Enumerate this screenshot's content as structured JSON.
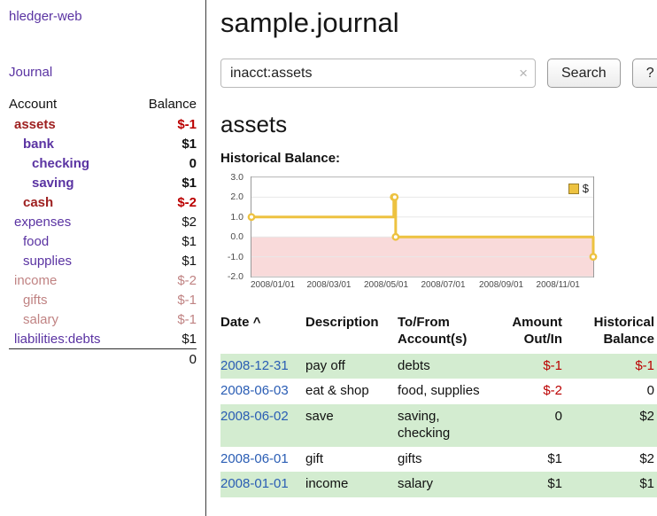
{
  "colors": {
    "purple": "#5a33a2",
    "red_name": "#9e2020",
    "neg": "#bb0000",
    "pink": "#c08383",
    "link_blue": "#2a5db4",
    "row_green": "#d3ecd0",
    "gold": "#edc240",
    "chart_neg_fill": "#f9dada"
  },
  "sidebar": {
    "app_title": "hledger-web",
    "journal_label": "Journal",
    "accounts_header": {
      "account": "Account",
      "balance": "Balance"
    },
    "accounts": [
      {
        "name": "assets",
        "indent": 0,
        "cls": "red bold",
        "balance": "$-1"
      },
      {
        "name": "bank",
        "indent": 1,
        "cls": "purple bold",
        "balance": "$1"
      },
      {
        "name": "checking",
        "indent": 2,
        "cls": "purple bold",
        "balance": "0"
      },
      {
        "name": "saving",
        "indent": 2,
        "cls": "purple bold",
        "balance": "$1"
      },
      {
        "name": "cash",
        "indent": 1,
        "cls": "red bold",
        "balance": "$-2"
      },
      {
        "name": "expenses",
        "indent": 0,
        "cls": "purple",
        "balance": "$2"
      },
      {
        "name": "food",
        "indent": 1,
        "cls": "purple",
        "balance": "$1"
      },
      {
        "name": "supplies",
        "indent": 1,
        "cls": "purple",
        "balance": "$1"
      },
      {
        "name": "income",
        "indent": 0,
        "cls": "pink",
        "balance": "$-2"
      },
      {
        "name": "gifts",
        "indent": 1,
        "cls": "pink",
        "balance": "$-1"
      },
      {
        "name": "salary",
        "indent": 1,
        "cls": "pink",
        "balance": "$-1"
      },
      {
        "name": "liabilities:debts",
        "indent": 0,
        "cls": "purple",
        "balance": "$1"
      }
    ],
    "total": "0"
  },
  "main": {
    "title": "sample.journal",
    "search": {
      "value": "inacct:assets",
      "clear_icon": "×",
      "button_label": "Search",
      "help_label": "?"
    },
    "account_heading": "assets"
  },
  "chart_data": {
    "type": "line",
    "title": "Historical Balance:",
    "step": true,
    "legend_position": "top-right",
    "xlim": [
      "2008-01-01",
      "2008-12-31"
    ],
    "ylim": [
      -2,
      3
    ],
    "negative_region_shaded": true,
    "yticks": [
      {
        "v": 3,
        "label": "3.0"
      },
      {
        "v": 2,
        "label": "2.0"
      },
      {
        "v": 1,
        "label": "1.0"
      },
      {
        "v": 0,
        "label": "0.0"
      },
      {
        "v": -1,
        "label": "-1.0"
      },
      {
        "v": -2,
        "label": "-2.0"
      }
    ],
    "xticks": [
      {
        "d": "2008-01-01",
        "label": "2008/01/01"
      },
      {
        "d": "2008-03-01",
        "label": "2008/03/01"
      },
      {
        "d": "2008-05-01",
        "label": "2008/05/01"
      },
      {
        "d": "2008-07-01",
        "label": "2008/07/01"
      },
      {
        "d": "2008-09-01",
        "label": "2008/09/01"
      },
      {
        "d": "2008-11-01",
        "label": "2008/11/01"
      }
    ],
    "series": [
      {
        "name": "$",
        "x": [
          "2008-01-01",
          "2008-06-01",
          "2008-06-02",
          "2008-06-03",
          "2008-12-31"
        ],
        "values": [
          1,
          2,
          2,
          0,
          -1
        ]
      }
    ]
  },
  "register": {
    "columns": [
      "Date",
      "Description",
      "To/From Account(s)",
      "Amount Out/In",
      "Historical Balance"
    ],
    "sort_icon": "^",
    "rows": [
      {
        "date": "2008-12-31",
        "description": "pay off",
        "accounts": "debts",
        "amount": "$-1",
        "balance": "$-1"
      },
      {
        "date": "2008-06-03",
        "description": "eat & shop",
        "accounts": "food, supplies",
        "amount": "$-2",
        "balance": "0"
      },
      {
        "date": "2008-06-02",
        "description": "save",
        "accounts": "saving, checking",
        "amount": "0",
        "balance": "$2"
      },
      {
        "date": "2008-06-01",
        "description": "gift",
        "accounts": "gifts",
        "amount": "$1",
        "balance": "$2"
      },
      {
        "date": "2008-01-01",
        "description": "income",
        "accounts": "salary",
        "amount": "$1",
        "balance": "$1"
      }
    ]
  }
}
